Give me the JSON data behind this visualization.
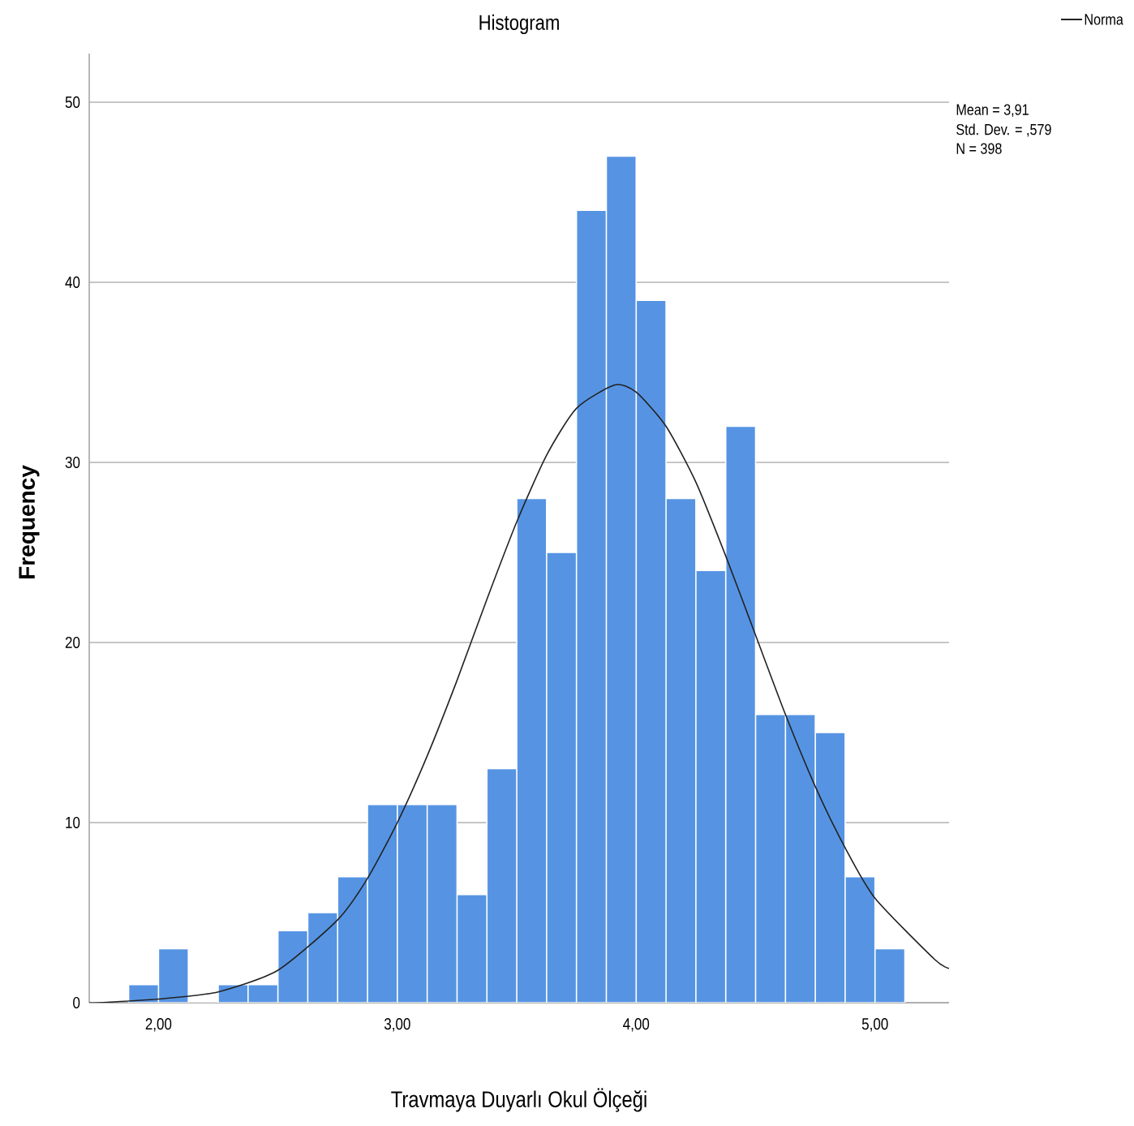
{
  "chart_data": {
    "type": "histogram",
    "title": "Histogram",
    "xlabel": "Travmaya Duyarlı Okul Ölçeği",
    "ylabel": "Frequency",
    "series": [
      {
        "color": "#5694e3",
        "bins": [
          1.875,
          2.0,
          2.125,
          2.25,
          2.375,
          2.5,
          2.625,
          2.75,
          2.875,
          3.0,
          3.125,
          3.25,
          3.375,
          3.5,
          3.625,
          3.75,
          3.875,
          4.0,
          4.125,
          4.25,
          4.375,
          4.5,
          4.625,
          4.75,
          4.875,
          5.0,
          5.125
        ],
        "values": [
          1,
          3,
          0,
          1,
          1,
          4,
          5,
          7,
          11,
          11,
          11,
          6,
          13,
          28,
          25,
          44,
          47,
          39,
          28,
          24,
          32,
          16,
          16,
          15,
          7,
          3
        ]
      },
      {
        "type": "line",
        "name": "Norma",
        "color": "#222222",
        "x": [
          1.71,
          1.75,
          2.0,
          2.25,
          2.5,
          2.75,
          2.875,
          3.0,
          3.125,
          3.25,
          3.375,
          3.5,
          3.625,
          3.75,
          3.91,
          4.0,
          4.125,
          4.25,
          4.375,
          4.5,
          4.625,
          4.75,
          4.875,
          5.0,
          5.25,
          5.31
        ],
        "values": [
          0,
          0,
          0.2,
          0.6,
          1.8,
          4.6,
          6.9,
          10,
          13.7,
          17.9,
          22.4,
          26.7,
          30.4,
          33,
          34.3,
          33.9,
          32,
          28.9,
          24.8,
          20.4,
          16,
          12,
          8.6,
          5.8,
          2.4,
          1.9
        ]
      }
    ],
    "xlim": [
      1.71,
      5.31
    ],
    "ylim": [
      0,
      52.7
    ],
    "xticks": [
      {
        "value": 2,
        "label": "2,00"
      },
      {
        "value": 3,
        "label": "3,00"
      },
      {
        "value": 4,
        "label": "4,00"
      },
      {
        "value": 5,
        "label": "5,00"
      }
    ],
    "yticks": [
      0,
      10,
      20,
      30,
      40,
      50
    ],
    "grid": "y",
    "legend": "top right",
    "annotations": [
      "Mean = 3,91",
      "Std. Dev. = ,579",
      "N = 398"
    ]
  }
}
